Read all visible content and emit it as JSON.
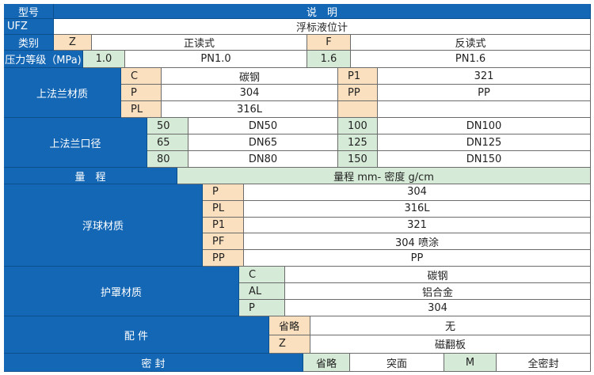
{
  "header": {
    "model": "型号",
    "description": "说　明"
  },
  "model_row": {
    "code": "UFZ",
    "value": "浮标液位计"
  },
  "category": {
    "label": "类别",
    "options": [
      {
        "code": "Z",
        "value": "正读式"
      },
      {
        "code": "F",
        "value": "反读式"
      }
    ]
  },
  "pressure": {
    "label": "压力等级（MPa)",
    "options": [
      {
        "code": "1.0",
        "value": "PN1.0"
      },
      {
        "code": "1.6",
        "value": "PN1.6"
      }
    ]
  },
  "flange_material": {
    "label": "上法兰材质",
    "left": [
      {
        "code": "C",
        "value": "碳钢"
      },
      {
        "code": "P",
        "value": "304"
      },
      {
        "code": "PL",
        "value": "316L"
      }
    ],
    "right": [
      {
        "code": "P1",
        "value": "321"
      },
      {
        "code": "PP",
        "value": "PP"
      },
      {
        "code": "",
        "value": ""
      }
    ]
  },
  "flange_size": {
    "label": "上法兰口径",
    "left": [
      {
        "code": "50",
        "value": "DN50"
      },
      {
        "code": "65",
        "value": "DN65"
      },
      {
        "code": "80",
        "value": "DN80"
      }
    ],
    "right": [
      {
        "code": "100",
        "value": "DN100"
      },
      {
        "code": "125",
        "value": "DN125"
      },
      {
        "code": "150",
        "value": "DN150"
      }
    ]
  },
  "range": {
    "label": "量　程",
    "value": "量程 mm- 密度 g/cm"
  },
  "float_material": {
    "label": "浮球材质",
    "items": [
      {
        "code": "P",
        "value": "304"
      },
      {
        "code": "PL",
        "value": "316L"
      },
      {
        "code": "P1",
        "value": "321"
      },
      {
        "code": "PF",
        "value": "304 喷涂"
      },
      {
        "code": "PP",
        "value": "PP"
      }
    ]
  },
  "cover_material": {
    "label": "护罩材质",
    "items": [
      {
        "code": "C",
        "value": "碳钢"
      },
      {
        "code": "AL",
        "value": "铝合金"
      },
      {
        "code": "P",
        "value": "304"
      }
    ]
  },
  "accessory": {
    "label": "配 件",
    "items": [
      {
        "code": "省略",
        "value": "无"
      },
      {
        "code": "Z",
        "value": "磁翻板"
      }
    ]
  },
  "seal": {
    "label": "密 封",
    "options": [
      {
        "code": "省略",
        "value": "突面"
      },
      {
        "code": "M",
        "value": "全密封"
      }
    ]
  },
  "colors": {
    "header_blue": "#1467b5",
    "code_orange": "#fbe0bf",
    "code_green": "#d6ebd7"
  }
}
